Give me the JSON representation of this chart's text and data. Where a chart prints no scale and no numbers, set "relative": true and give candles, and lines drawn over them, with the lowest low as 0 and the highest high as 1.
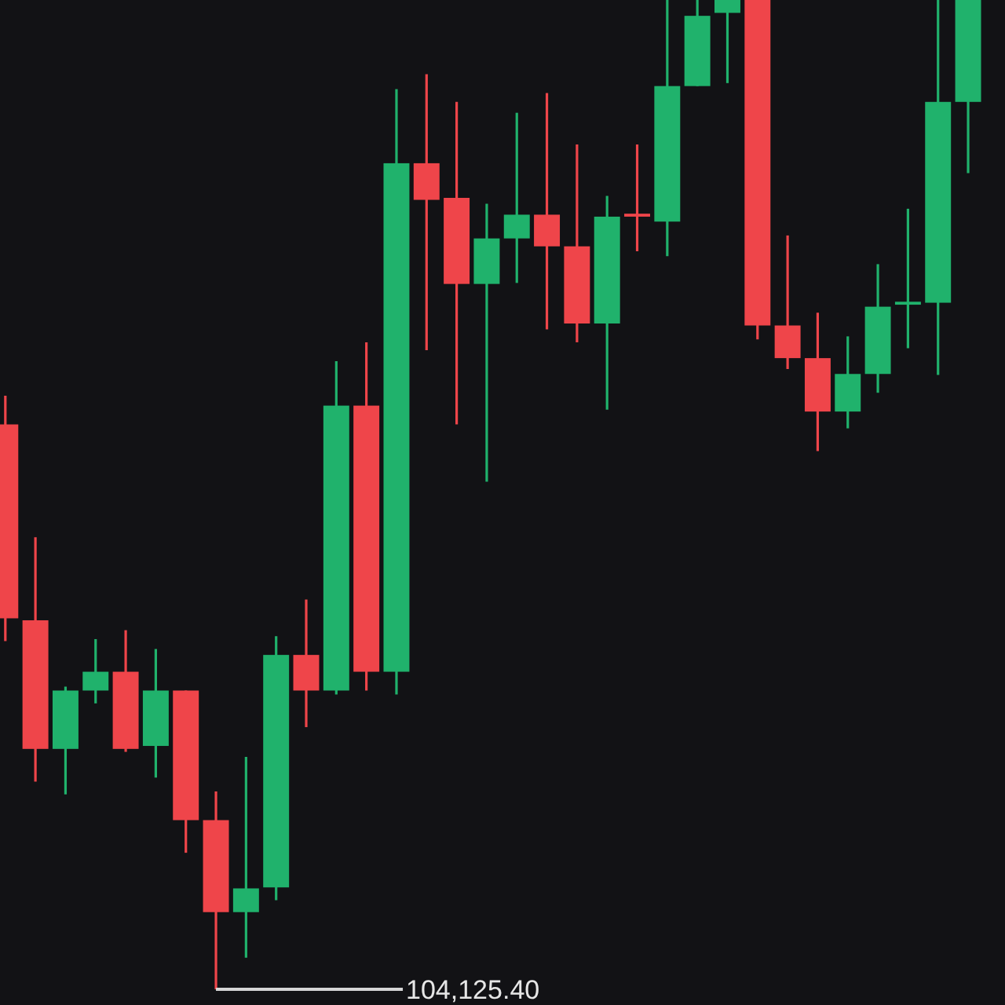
{
  "chart_data": {
    "type": "candlestick",
    "relative": true,
    "categories": [
      null,
      null,
      null,
      null,
      null,
      null,
      null,
      null,
      null,
      null,
      null,
      null,
      null,
      null,
      null,
      null,
      null,
      null,
      null,
      null,
      null,
      null,
      null,
      null,
      null,
      null,
      null,
      null,
      null,
      null,
      null,
      null,
      null
    ],
    "ohlc": [
      [
        0.571,
        0.6,
        0.352,
        0.375
      ],
      [
        0.373,
        0.457,
        0.21,
        0.243
      ],
      [
        0.243,
        0.306,
        0.197,
        0.302
      ],
      [
        0.302,
        0.354,
        0.289,
        0.321
      ],
      [
        0.321,
        0.363,
        0.24,
        0.243
      ],
      [
        0.246,
        0.344,
        0.214,
        0.302
      ],
      [
        0.302,
        0.302,
        0.138,
        0.171
      ],
      [
        0.171,
        0.2,
        0,
        0.078
      ],
      [
        0.078,
        0.235,
        0.032,
        0.102
      ],
      [
        0.103,
        0.357,
        0.09,
        0.338
      ],
      [
        0.338,
        0.394,
        0.265,
        0.302
      ],
      [
        0.302,
        0.635,
        0.298,
        0.59
      ],
      [
        0.59,
        0.654,
        0.302,
        0.321
      ],
      [
        0.321,
        0.91,
        0.298,
        0.835
      ],
      [
        0.835,
        0.925,
        0.646,
        0.798
      ],
      [
        0.8,
        0.897,
        0.571,
        0.713
      ],
      [
        0.713,
        0.794,
        0.513,
        0.759
      ],
      [
        0.759,
        0.886,
        0.714,
        0.783
      ],
      [
        0.783,
        0.906,
        0.667,
        0.751
      ],
      [
        0.751,
        0.854,
        0.654,
        0.673
      ],
      [
        0.673,
        0.802,
        0.586,
        0.781
      ],
      [
        0.784,
        0.854,
        0.746,
        0.781
      ],
      [
        0.776,
        1,
        0.741,
        0.913
      ],
      [
        0.913,
        1,
        0.913,
        0.984
      ],
      [
        0.987,
        1,
        0.916,
        1
      ],
      [
        1,
        1,
        0.657,
        0.671
      ],
      [
        0.671,
        0.762,
        0.627,
        0.638
      ],
      [
        0.638,
        0.684,
        0.544,
        0.584
      ],
      [
        0.584,
        0.66,
        0.567,
        0.622
      ],
      [
        0.622,
        0.733,
        0.603,
        0.69
      ],
      [
        0.692,
        0.789,
        0.648,
        0.695
      ],
      [
        0.694,
        1,
        0.621,
        0.897
      ],
      [
        0.897,
        1,
        0.825,
        1
      ]
    ],
    "colors": [
      "#ef454a",
      "#ef454a",
      "#20b26c",
      "#20b26c",
      "#ef454a",
      "#20b26c",
      "#ef454a",
      "#ef454a",
      "#20b26c",
      "#20b26c",
      "#ef454a",
      "#20b26c",
      "#ef454a",
      "#20b26c",
      "#ef454a",
      "#ef454a",
      "#20b26c",
      "#20b26c",
      "#ef454a",
      "#ef454a",
      "#20b26c",
      "#ef454a",
      "#20b26c",
      "#20b26c",
      "#20b26c",
      "#ef454a",
      "#ef454a",
      "#ef454a",
      "#20b26c",
      "#20b26c",
      "#20b26c",
      "#20b26c",
      "#20b26c"
    ],
    "annotations": [
      "104,125.40"
    ]
  }
}
